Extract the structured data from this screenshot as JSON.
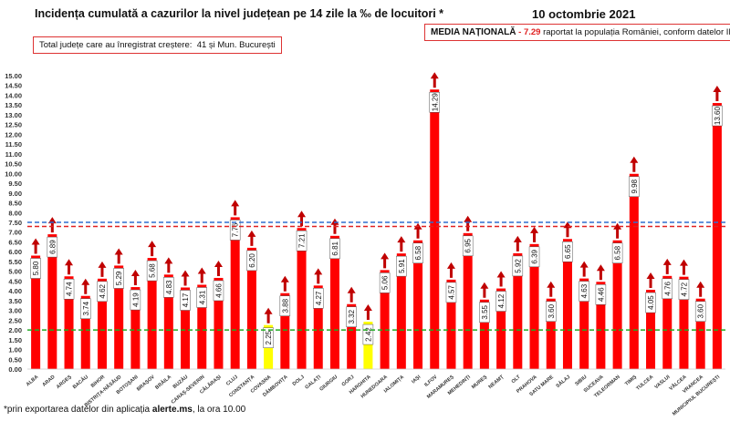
{
  "chart_data": {
    "type": "bar",
    "title": "Incidența cumulată a cazurilor la nivel județean pe 14 zile la ‰ de locuitori *",
    "date": "10 octombrie 2021",
    "ylim": [
      0,
      15
    ],
    "ytick_step": 0.5,
    "categories": [
      "ALBA",
      "ARAD",
      "ARGEȘ",
      "BACĂU",
      "BIHOR",
      "BISTRIȚA-NĂSĂUD",
      "BOTOȘANI",
      "BRAȘOV",
      "BRĂILA",
      "BUZĂU",
      "CARAȘ-SEVERIN",
      "CĂLĂRAȘI",
      "CLUJ",
      "CONSTANȚA",
      "COVASNA",
      "DÂMBOVIȚA",
      "DOLJ",
      "GALAȚI",
      "GIURGIU",
      "GORJ",
      "HARGHITA",
      "HUNEDOARA",
      "IALOMIȚA",
      "IAȘI",
      "ILFOV",
      "MARAMUREȘ",
      "MEHEDINȚI",
      "MUREȘ",
      "NEAMȚ",
      "OLT",
      "PRAHOVA",
      "SATU MARE",
      "SĂLAJ",
      "SIBIU",
      "SUCEAVA",
      "TELEORMAN",
      "TIMIȘ",
      "TULCEA",
      "VASLUI",
      "VÂLCEA",
      "VRANCEA",
      "MUNICIPIUL BUCUREȘTI"
    ],
    "values": [
      5.8,
      6.89,
      4.74,
      3.74,
      4.62,
      5.29,
      4.19,
      5.68,
      4.83,
      4.17,
      4.31,
      4.66,
      7.76,
      6.2,
      2.25,
      3.88,
      7.21,
      4.27,
      6.81,
      3.32,
      2.42,
      5.06,
      5.91,
      6.58,
      14.29,
      4.57,
      6.95,
      3.55,
      4.12,
      5.92,
      6.39,
      3.6,
      6.65,
      4.63,
      4.46,
      6.58,
      9.98,
      4.05,
      4.76,
      4.72,
      3.6,
      13.6
    ],
    "trend": "increase",
    "reference_lines": [
      {
        "value": 7.5,
        "color": "#2e6fcf"
      },
      {
        "value": 7.29,
        "color": "#e02020"
      },
      {
        "value": 2.0,
        "color": "#22aa22"
      }
    ],
    "colors": {
      "bar": "#ff0000",
      "bar_low": "#ffff00",
      "arrow": "#c00000"
    },
    "grid": false,
    "legend": "none"
  },
  "summary": {
    "label": "Total județe care au înregistrat creștere:",
    "value": "41 și Mun. București"
  },
  "national": {
    "label": "MEDIA NAȚIONALĂ",
    "sep": " - ",
    "value": "7.29",
    "text": " raportat la populația României, conform datelor INS"
  },
  "footnote": {
    "pre": "*prin exportarea datelor din aplicația ",
    "bold": "alerte.ms",
    "post": ", la ora 10.00"
  }
}
